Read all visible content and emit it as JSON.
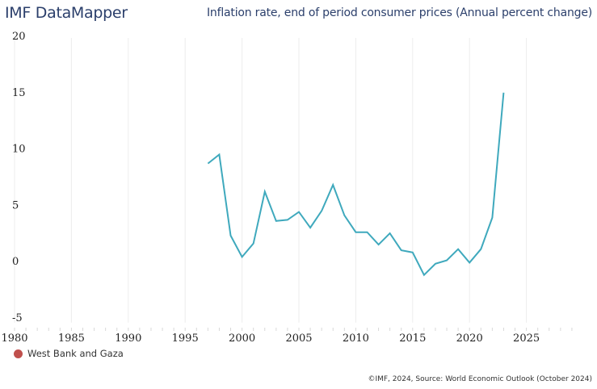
{
  "header": {
    "brand": "IMF DataMapper",
    "title": "Inflation rate, end of period consumer prices (Annual percent change)"
  },
  "legend": {
    "label": "West Bank and Gaza",
    "color": "#c0504d"
  },
  "footer": {
    "credit": "©IMF, 2024, Source: World Economic Outlook (October 2024)"
  },
  "chart_data": {
    "type": "line",
    "title": "Inflation rate, end of period consumer prices (Annual percent change)",
    "xlabel": "",
    "ylabel": "",
    "xlim": [
      1980,
      2029
    ],
    "ylim": [
      -5,
      20
    ],
    "xticks": [
      1980,
      1985,
      1990,
      1995,
      2000,
      2005,
      2010,
      2015,
      2020,
      2025
    ],
    "yticks": [
      20,
      15,
      10,
      5,
      0,
      -5
    ],
    "grid": "vertical",
    "legend_position": "bottom-left",
    "line_color": "#3fa9bd",
    "series": [
      {
        "name": "West Bank and Gaza",
        "x": [
          1997,
          1998,
          1999,
          2000,
          2001,
          2002,
          2003,
          2004,
          2005,
          2006,
          2007,
          2008,
          2009,
          2010,
          2011,
          2012,
          2013,
          2014,
          2015,
          2016,
          2017,
          2018,
          2019,
          2020,
          2021,
          2022,
          2023
        ],
        "values": [
          8.7,
          9.5,
          2.3,
          0.4,
          1.6,
          6.2,
          3.6,
          3.7,
          4.4,
          3.0,
          4.5,
          6.8,
          4.1,
          2.6,
          2.6,
          1.5,
          2.5,
          1.0,
          0.8,
          -1.2,
          -0.2,
          0.1,
          1.1,
          -0.1,
          1.1,
          3.9,
          15.0
        ]
      }
    ]
  }
}
